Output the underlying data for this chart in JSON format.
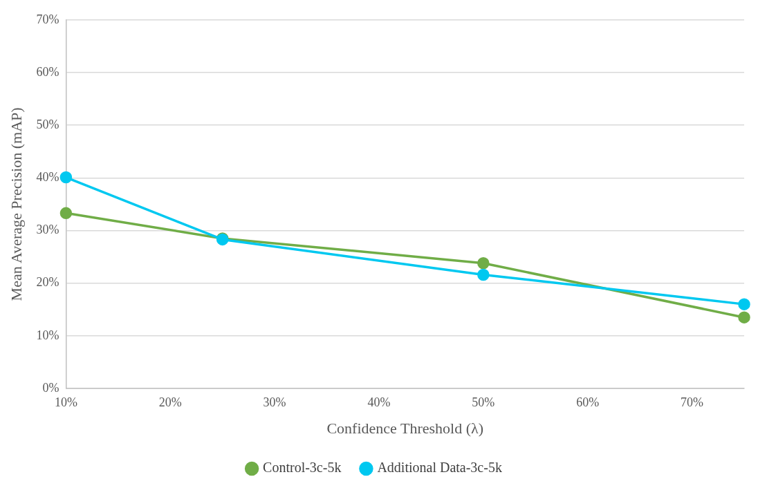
{
  "chart_data": {
    "type": "line",
    "xlabel": "Confidence Threshold (λ)",
    "ylabel": "Mean Average Precision (mAP)",
    "x": [
      10,
      25,
      50,
      75
    ],
    "series": [
      {
        "name": "Control-3c-5k",
        "color": "#70ad47",
        "values": [
          33.3,
          28.5,
          23.8,
          13.5
        ]
      },
      {
        "name": "Additional Data-3c-5k",
        "color": "#00c8f0",
        "values": [
          40.1,
          28.3,
          21.6,
          16.0
        ]
      }
    ],
    "xlim": [
      10,
      75
    ],
    "xticks": [
      {
        "value": 10,
        "label": "10%"
      },
      {
        "value": 20,
        "label": "20%"
      },
      {
        "value": 30,
        "label": "30%"
      },
      {
        "value": 40,
        "label": "40%"
      },
      {
        "value": 50,
        "label": "50%"
      },
      {
        "value": 60,
        "label": "60%"
      },
      {
        "value": 70,
        "label": "70%"
      }
    ],
    "ylim": [
      0,
      70
    ],
    "yticks": [
      {
        "value": 0,
        "label": "0%"
      },
      {
        "value": 10,
        "label": "10%"
      },
      {
        "value": 20,
        "label": "20%"
      },
      {
        "value": 30,
        "label": "30%"
      },
      {
        "value": 40,
        "label": "40%"
      },
      {
        "value": 50,
        "label": "50%"
      },
      {
        "value": 60,
        "label": "60%"
      },
      {
        "value": 70,
        "label": "70%"
      }
    ],
    "grid": "y",
    "legend": "bottom",
    "marker": "circle",
    "line_style": "solid"
  }
}
